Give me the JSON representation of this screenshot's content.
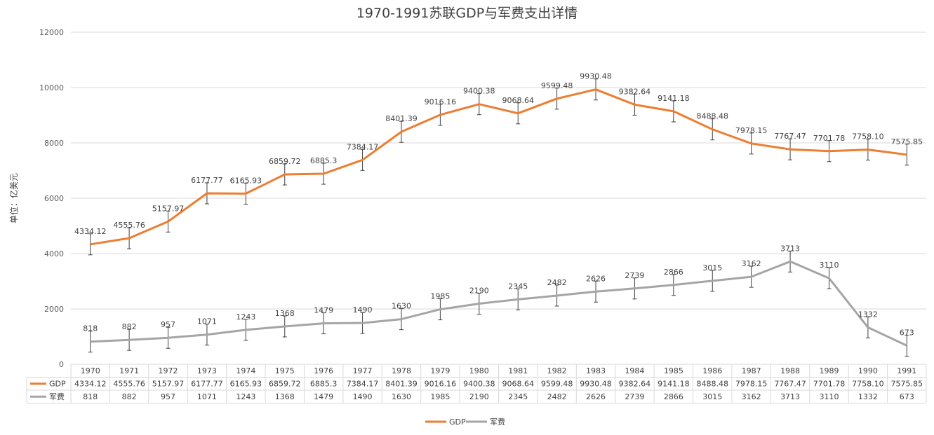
{
  "chart_data": {
    "type": "line",
    "title": "1970-1991苏联GDP与军费支出详情",
    "ylabel": "单位：亿美元",
    "ylim": [
      0,
      12000
    ],
    "yticks": [
      0,
      2000,
      4000,
      6000,
      8000,
      10000,
      12000
    ],
    "grid": true,
    "legend_position": "bottom",
    "error_bars": true,
    "data_table": true,
    "categories": [
      "1970",
      "1971",
      "1972",
      "1973",
      "1974",
      "1975",
      "1976",
      "1977",
      "1978",
      "1979",
      "1980",
      "1981",
      "1982",
      "1983",
      "1984",
      "1985",
      "1986",
      "1987",
      "1988",
      "1989",
      "1990",
      "1991"
    ],
    "series": [
      {
        "name": "GDP",
        "color": "#ED7D31",
        "values": [
          4334.12,
          4555.76,
          5157.97,
          6177.77,
          6165.93,
          6859.72,
          6885.3,
          7384.17,
          8401.39,
          9016.16,
          9400.38,
          9068.64,
          9599.48,
          9930.48,
          9382.64,
          9141.18,
          8488.48,
          7978.15,
          7767.47,
          7701.78,
          7758.1,
          7575.85
        ],
        "labels": [
          "4334.12",
          "4555.76",
          "5157.97",
          "6177.77",
          "6165.93",
          "6859.72",
          "6885.3",
          "7384.17",
          "8401.39",
          "9016.16",
          "9400.38",
          "9068.64",
          "9599.48",
          "9930.48",
          "9382.64",
          "9141.18",
          "8488.48",
          "7978.15",
          "7767.47",
          "7701.78",
          "7758.10",
          "7575.85"
        ]
      },
      {
        "name": "军费",
        "color": "#A5A5A5",
        "values": [
          818,
          882,
          957,
          1071,
          1243,
          1368,
          1479,
          1490,
          1630,
          1985,
          2190,
          2345,
          2482,
          2626,
          2739,
          2866,
          3015,
          3162,
          3713,
          3110,
          1332,
          673
        ],
        "labels": [
          "818",
          "882",
          "957",
          "1071",
          "1243",
          "1368",
          "1479",
          "1490",
          "1630",
          "1985",
          "2190",
          "2345",
          "2482",
          "2626",
          "2739",
          "2866",
          "3015",
          "3162",
          "3713",
          "3110",
          "1332",
          "673"
        ]
      }
    ]
  }
}
